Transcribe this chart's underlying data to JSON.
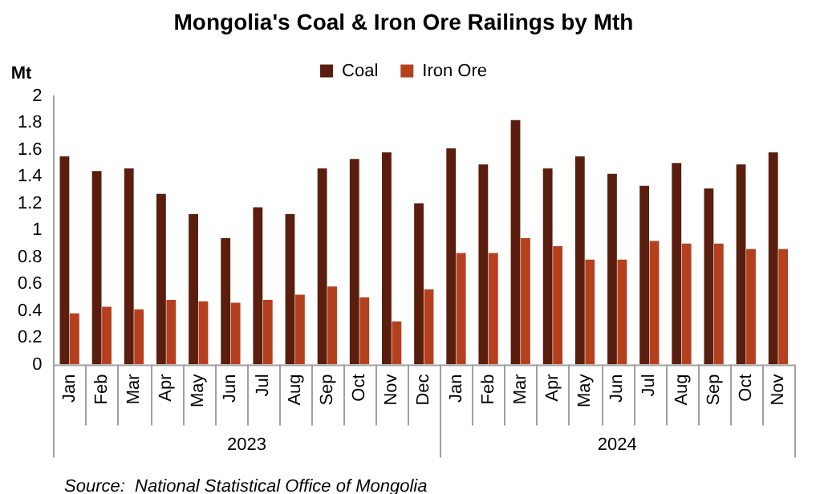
{
  "chart_data": {
    "type": "bar",
    "title": "Mongolia's Coal & Iron Ore Railings by Mth",
    "ylabel": "Mt",
    "categories": [
      "Jan",
      "Feb",
      "Mar",
      "Apr",
      "May",
      "Jun",
      "Jul",
      "Aug",
      "Sep",
      "Oct",
      "Nov",
      "Dec",
      "Jan",
      "Feb",
      "Mar",
      "Apr",
      "May",
      "Jun",
      "Jul",
      "Aug",
      "Sep",
      "Oct",
      "Nov"
    ],
    "series": [
      {
        "name": "Coal",
        "color": "#5a1e0e",
        "values": [
          1.55,
          1.44,
          1.46,
          1.27,
          1.12,
          0.94,
          1.17,
          1.12,
          1.46,
          1.53,
          1.58,
          1.2,
          1.61,
          1.49,
          1.82,
          1.46,
          1.55,
          1.42,
          1.33,
          1.5,
          1.31,
          1.49,
          1.58
        ]
      },
      {
        "name": "Iron Ore",
        "color": "#b5401e",
        "values": [
          0.38,
          0.43,
          0.41,
          0.48,
          0.47,
          0.46,
          0.48,
          0.52,
          0.58,
          0.5,
          0.32,
          0.56,
          0.83,
          0.83,
          0.94,
          0.88,
          0.78,
          0.78,
          0.92,
          0.9,
          0.9,
          0.86,
          0.86
        ]
      }
    ],
    "ylim": [
      0,
      2
    ],
    "yticks": [
      0,
      0.2,
      0.4,
      0.6,
      0.8,
      1,
      1.2,
      1.4,
      1.6,
      1.8,
      2
    ],
    "grid": false,
    "legend": "top",
    "annotations": [
      "2023",
      "2024",
      "Source:  National Statistical Office of Mongolia"
    ]
  }
}
